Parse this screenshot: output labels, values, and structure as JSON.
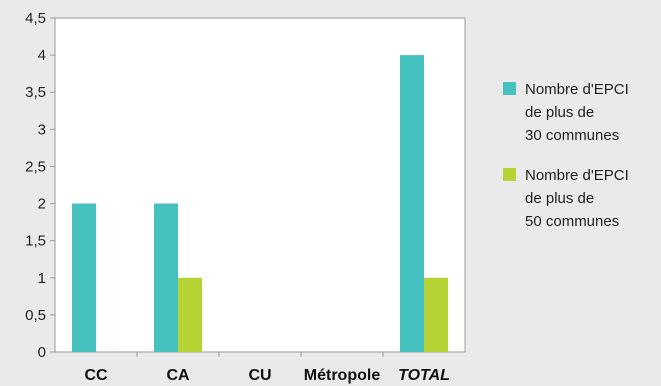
{
  "chart_data": {
    "type": "bar",
    "categories": [
      {
        "label": "CC",
        "italic": false
      },
      {
        "label": "CA",
        "italic": false
      },
      {
        "label": "CU",
        "italic": false
      },
      {
        "label": "Métropole",
        "italic": false
      },
      {
        "label": "TOTAL",
        "italic": true
      }
    ],
    "series": [
      {
        "name": "Nombre d'EPCI de plus de 30 communes",
        "legend_lines": [
          "Nombre d'EPCI",
          "de plus de",
          "30 communes"
        ],
        "color": "#45c1bf",
        "values": [
          2,
          2,
          0,
          0,
          4
        ]
      },
      {
        "name": "Nombre d'EPCI de plus de 50 communes",
        "legend_lines": [
          "Nombre d'EPCI",
          "de plus de",
          "50 communes"
        ],
        "color": "#b5d334",
        "values": [
          0,
          1,
          0,
          0,
          1
        ]
      }
    ],
    "yticks": [
      "0",
      "0,5",
      "1",
      "1,5",
      "2",
      "2,5",
      "3",
      "3,5",
      "4",
      "4,5"
    ],
    "ylim": [
      0,
      4.5
    ],
    "legend_position": "right",
    "grid": false
  }
}
